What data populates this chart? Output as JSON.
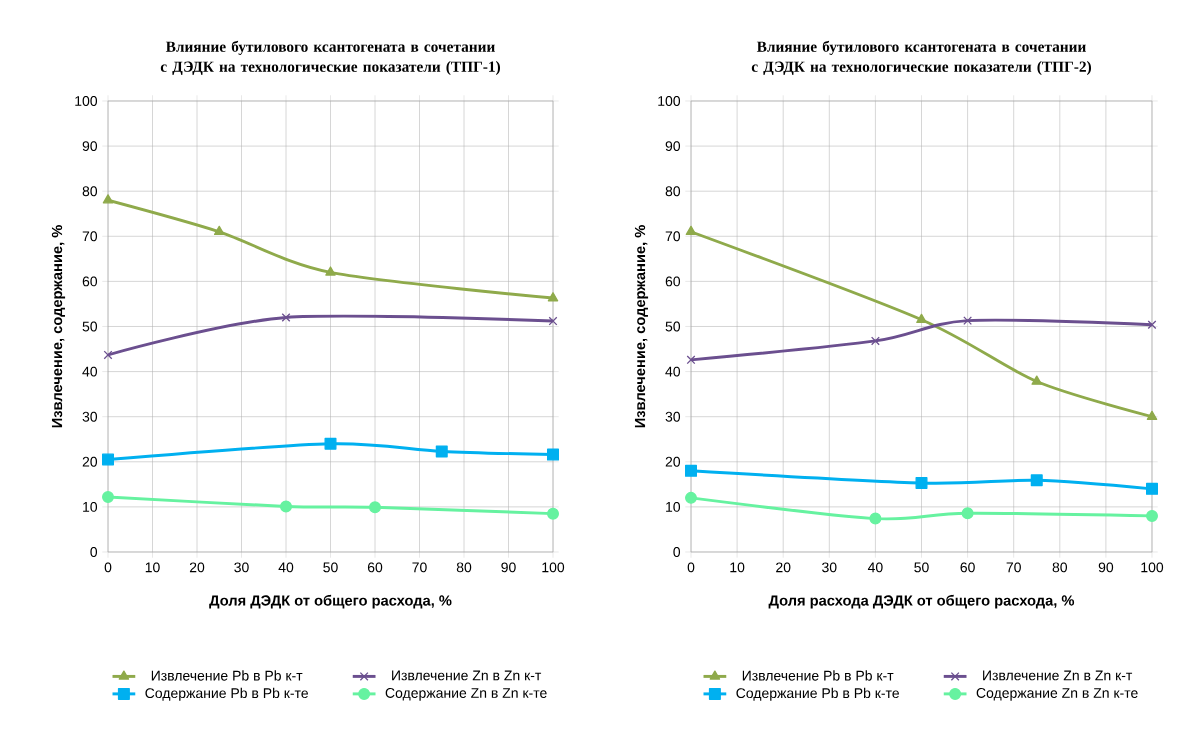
{
  "chart_data": [
    {
      "type": "line",
      "title": "Влияние бутилового ксантогената в сочетании с ДЭДК на технологические показатели (ТПГ-1)",
      "xlabel": "Доля ДЭДК от общего расхода, %",
      "ylabel": "Извлечение, содержание, %",
      "xlim": [
        0,
        100
      ],
      "ylim": [
        0,
        100
      ],
      "xticks": [
        0,
        10,
        20,
        30,
        40,
        50,
        60,
        70,
        80,
        90,
        100
      ],
      "yticks": [
        0,
        10,
        20,
        30,
        40,
        50,
        60,
        70,
        80,
        90,
        100
      ],
      "grid": true,
      "legend": "bottom",
      "line_style": "solid",
      "series": [
        {
          "name": "Извлечение Pb в Pb к-т",
          "color": "#8faa4b",
          "marker": "triangle",
          "x": [
            0,
            25,
            50,
            100
          ],
          "values": [
            78,
            71,
            62,
            56.3
          ]
        },
        {
          "name": "Извлечение Zn в Zn к-т",
          "color": "#6b4f8f",
          "marker": "cross",
          "x": [
            0,
            40,
            100
          ],
          "values": [
            43.7,
            52,
            51.2
          ]
        },
        {
          "name": "Содержание Pb в Pb к-те",
          "color": "#00b0f0",
          "marker": "square",
          "x": [
            0,
            50,
            75,
            100
          ],
          "values": [
            20.5,
            24,
            22.3,
            21.6
          ]
        },
        {
          "name": "Содержание Zn в Zn к-те",
          "color": "#66f2a0",
          "marker": "circle",
          "x": [
            0,
            40,
            60,
            100
          ],
          "values": [
            12.2,
            10.1,
            9.9,
            8.5
          ]
        }
      ]
    },
    {
      "type": "line",
      "title": "Влияние бутилового ксантогената в сочетании с ДЭДК на технологические показатели (ТПГ-2)",
      "xlabel": "Доля расхода ДЭДК от общего расхода, %",
      "ylabel": "Извлечение, содержание, %",
      "xlim": [
        0,
        100
      ],
      "ylim": [
        0,
        100
      ],
      "xticks": [
        0,
        10,
        20,
        30,
        40,
        50,
        60,
        70,
        80,
        90,
        100
      ],
      "yticks": [
        0,
        10,
        20,
        30,
        40,
        50,
        60,
        70,
        80,
        90,
        100
      ],
      "grid": true,
      "legend": "bottom",
      "line_style": "solid",
      "series": [
        {
          "name": "Извлечение Pb в Pb к-т",
          "color": "#8faa4b",
          "marker": "triangle",
          "x": [
            0,
            50,
            75,
            100
          ],
          "values": [
            71,
            51.5,
            37.8,
            30
          ]
        },
        {
          "name": "Извлечение Zn в Zn к-т",
          "color": "#6b4f8f",
          "marker": "cross",
          "x": [
            0,
            40,
            60,
            100
          ],
          "values": [
            42.6,
            46.8,
            51.3,
            50.4
          ]
        },
        {
          "name": "Содержание Pb в Pb к-те",
          "color": "#00b0f0",
          "marker": "square",
          "x": [
            0,
            50,
            75,
            100
          ],
          "values": [
            18,
            15.3,
            15.9,
            14
          ]
        },
        {
          "name": "Содержание Zn в Zn к-те",
          "color": "#66f2a0",
          "marker": "circle",
          "x": [
            0,
            40,
            60,
            100
          ],
          "values": [
            12,
            7.4,
            8.6,
            8
          ]
        }
      ]
    }
  ]
}
